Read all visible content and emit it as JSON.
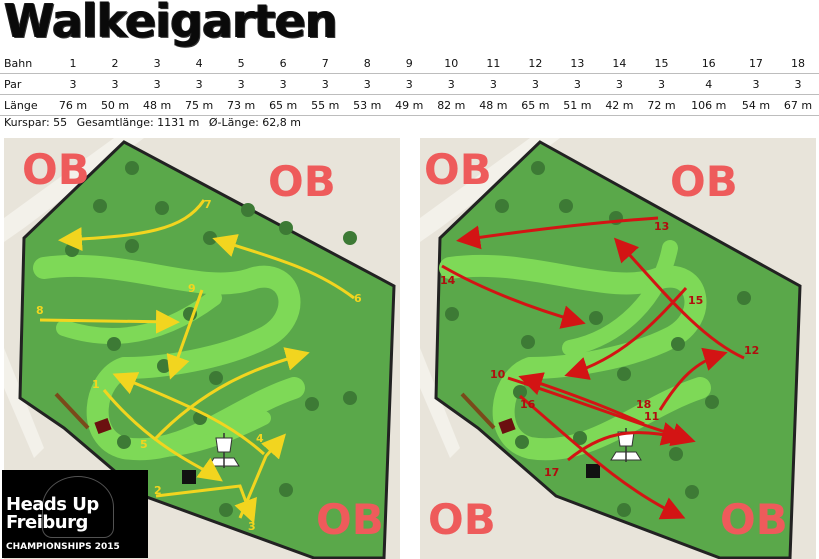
{
  "title": "Walkeigarten",
  "scorecard": {
    "labels": {
      "hole": "Bahn",
      "par": "Par",
      "length": "Länge"
    },
    "holes": [
      "1",
      "2",
      "3",
      "4",
      "5",
      "6",
      "7",
      "8",
      "9",
      "10",
      "11",
      "12",
      "13",
      "14",
      "15",
      "16",
      "17",
      "18"
    ],
    "pars": [
      "3",
      "3",
      "3",
      "3",
      "3",
      "3",
      "3",
      "3",
      "3",
      "3",
      "3",
      "3",
      "3",
      "3",
      "3",
      "4",
      "3",
      "3"
    ],
    "lengths": [
      "76 m",
      "50 m",
      "48 m",
      "75 m",
      "73 m",
      "65 m",
      "55 m",
      "53 m",
      "49 m",
      "82 m",
      "48 m",
      "65 m",
      "51 m",
      "42 m",
      "72 m",
      "106 m",
      "54 m",
      "67 m"
    ]
  },
  "summary": {
    "course_par": "Kurspar: 55",
    "total_length": "Gesamtlänge: 1131 m",
    "avg_length": "Ø-Länge: 62,8 m"
  },
  "ob_label": "OB",
  "map_left": {
    "hole_labels": [
      "1",
      "2",
      "3",
      "4",
      "5",
      "6",
      "7",
      "8",
      "9"
    ]
  },
  "map_right": {
    "hole_labels": [
      "10",
      "11",
      "12",
      "13",
      "14",
      "15",
      "16",
      "17",
      "18"
    ]
  },
  "badge": {
    "line1": "Heads Up",
    "line2": "Freiburg",
    "line3": "CHAMPIONSHIPS 2015"
  },
  "colors": {
    "grass": "#5aa84a",
    "fairway": "#7ed957",
    "yellow_arrow": "#f2d51f",
    "red_arrow": "#d31414",
    "ob_text": "#ee5b5b",
    "park_bg": "#e8e4da"
  }
}
